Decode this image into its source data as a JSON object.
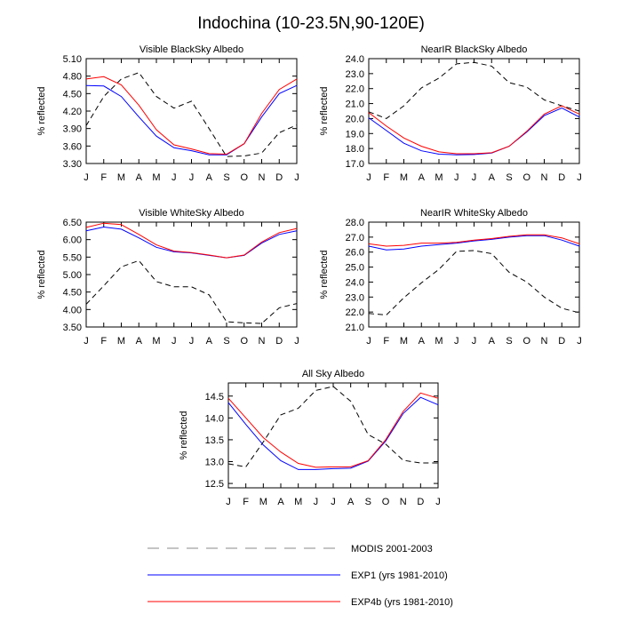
{
  "figure_title": "Indochina (10-23.5N,90-120E)",
  "colors": {
    "modis": "#000000",
    "exp1": "#0000ff",
    "exp4b": "#ff0000"
  },
  "legend": [
    {
      "label": "MODIS 2001-2003",
      "style": "dashed",
      "color": "#000000"
    },
    {
      "label": "EXP1 (yrs 1981-2010)",
      "style": "solid",
      "color": "#0000ff"
    },
    {
      "label": "EXP4b (yrs 1981-2010)",
      "style": "solid",
      "color": "#ff0000"
    }
  ],
  "chart_data": [
    {
      "type": "line",
      "title": "Visible BlackSky Albedo",
      "ylabel": "% reflected",
      "categories": [
        "J",
        "F",
        "M",
        "A",
        "M",
        "J",
        "J",
        "A",
        "S",
        "O",
        "N",
        "D",
        "J"
      ],
      "ylim": [
        3.3,
        5.1
      ],
      "yticks": [
        3.3,
        3.6,
        3.9,
        4.2,
        4.5,
        4.8,
        5.1
      ],
      "ytick_labels": [
        "3.30",
        "3.60",
        "3.90",
        "4.20",
        "4.50",
        "4.80",
        "5.10"
      ],
      "series": [
        {
          "name": "MODIS 2001-2003",
          "values": [
            3.95,
            4.45,
            4.75,
            4.86,
            4.45,
            4.25,
            4.37,
            3.9,
            3.42,
            3.43,
            3.48,
            3.83,
            3.96
          ]
        },
        {
          "name": "EXP1 (yrs 1981-2010)",
          "values": [
            4.64,
            4.63,
            4.45,
            4.1,
            3.77,
            3.57,
            3.52,
            3.45,
            3.45,
            3.64,
            4.1,
            4.5,
            4.64
          ]
        },
        {
          "name": "EXP4b (yrs 1981-2010)",
          "values": [
            4.75,
            4.79,
            4.65,
            4.3,
            3.88,
            3.62,
            3.55,
            3.47,
            3.46,
            3.64,
            4.16,
            4.57,
            4.75
          ]
        }
      ]
    },
    {
      "type": "line",
      "title": "NearIR BlackSky Albedo",
      "ylabel": "% reflected",
      "categories": [
        "J",
        "F",
        "M",
        "A",
        "M",
        "J",
        "J",
        "A",
        "S",
        "O",
        "N",
        "D",
        "J"
      ],
      "ylim": [
        17.0,
        24.0
      ],
      "yticks": [
        17.0,
        18.0,
        19.0,
        20.0,
        21.0,
        22.0,
        23.0,
        24.0
      ],
      "ytick_labels": [
        "17.0",
        "18.0",
        "19.0",
        "20.0",
        "21.0",
        "22.0",
        "23.0",
        "24.0"
      ],
      "series": [
        {
          "name": "MODIS 2001-2003",
          "values": [
            20.45,
            20.0,
            20.85,
            22.05,
            22.7,
            23.65,
            23.75,
            23.5,
            22.4,
            22.1,
            21.25,
            20.85,
            20.5
          ]
        },
        {
          "name": "EXP1 (yrs 1981-2010)",
          "values": [
            20.05,
            19.2,
            18.35,
            17.85,
            17.62,
            17.58,
            17.6,
            17.7,
            18.15,
            19.1,
            20.2,
            20.7,
            20.1
          ]
        },
        {
          "name": "EXP4b (yrs 1981-2010)",
          "values": [
            20.4,
            19.5,
            18.7,
            18.15,
            17.78,
            17.65,
            17.65,
            17.72,
            18.15,
            19.15,
            20.3,
            20.85,
            20.3
          ]
        }
      ]
    },
    {
      "type": "line",
      "title": "Visible WhiteSky Albedo",
      "ylabel": "% reflected",
      "categories": [
        "J",
        "F",
        "M",
        "A",
        "M",
        "J",
        "J",
        "A",
        "S",
        "O",
        "N",
        "D",
        "J"
      ],
      "ylim": [
        3.5,
        6.5
      ],
      "yticks": [
        3.5,
        4.0,
        4.5,
        5.0,
        5.5,
        6.0,
        6.5
      ],
      "ytick_labels": [
        "3.50",
        "4.00",
        "4.50",
        "5.00",
        "5.50",
        "6.00",
        "6.50"
      ],
      "series": [
        {
          "name": "MODIS 2001-2003",
          "values": [
            4.15,
            4.68,
            5.22,
            5.4,
            4.8,
            4.65,
            4.65,
            4.42,
            3.65,
            3.62,
            3.6,
            4.05,
            4.17
          ]
        },
        {
          "name": "EXP1 (yrs 1981-2010)",
          "values": [
            6.25,
            6.36,
            6.3,
            6.05,
            5.78,
            5.65,
            5.62,
            5.55,
            5.48,
            5.55,
            5.9,
            6.15,
            6.25
          ]
        },
        {
          "name": "EXP4b (yrs 1981-2010)",
          "values": [
            6.35,
            6.47,
            6.43,
            6.15,
            5.85,
            5.67,
            5.63,
            5.56,
            5.48,
            5.56,
            5.93,
            6.2,
            6.32
          ]
        }
      ]
    },
    {
      "type": "line",
      "title": "NearIR WhiteSky Albedo",
      "ylabel": "% reflected",
      "categories": [
        "J",
        "F",
        "M",
        "A",
        "M",
        "J",
        "J",
        "A",
        "S",
        "O",
        "N",
        "D",
        "J"
      ],
      "ylim": [
        21.0,
        28.0
      ],
      "yticks": [
        21.0,
        22.0,
        23.0,
        24.0,
        25.0,
        26.0,
        27.0,
        28.0
      ],
      "ytick_labels": [
        "21.0",
        "22.0",
        "23.0",
        "24.0",
        "25.0",
        "26.0",
        "27.0",
        "28.0"
      ],
      "series": [
        {
          "name": "MODIS 2001-2003",
          "values": [
            21.9,
            21.8,
            22.95,
            23.95,
            24.85,
            26.05,
            26.1,
            25.9,
            24.65,
            24.0,
            23.0,
            22.25,
            21.95
          ]
        },
        {
          "name": "EXP1 (yrs 1981-2010)",
          "values": [
            26.4,
            26.15,
            26.2,
            26.4,
            26.5,
            26.6,
            26.75,
            26.85,
            27.0,
            27.1,
            27.1,
            26.8,
            26.4
          ]
        },
        {
          "name": "EXP4b (yrs 1981-2010)",
          "values": [
            26.55,
            26.4,
            26.45,
            26.6,
            26.6,
            26.65,
            26.8,
            26.9,
            27.05,
            27.15,
            27.15,
            26.95,
            26.55
          ]
        }
      ]
    },
    {
      "type": "line",
      "title": "All Sky Albedo",
      "ylabel": "% reflected",
      "categories": [
        "J",
        "F",
        "M",
        "A",
        "M",
        "J",
        "J",
        "A",
        "S",
        "O",
        "N",
        "D",
        "J"
      ],
      "ylim": [
        12.4,
        14.8
      ],
      "yticks": [
        12.5,
        13.0,
        13.5,
        14.0,
        14.5
      ],
      "ytick_labels": [
        "12.5",
        "13.0",
        "13.5",
        "14.0",
        "14.5"
      ],
      "series": [
        {
          "name": "MODIS 2001-2003",
          "values": [
            12.95,
            12.88,
            13.45,
            14.07,
            14.22,
            14.63,
            14.72,
            14.38,
            13.62,
            13.4,
            13.03,
            12.97,
            12.97
          ]
        },
        {
          "name": "EXP1 (yrs 1981-2010)",
          "values": [
            14.35,
            13.85,
            13.38,
            13.02,
            12.82,
            12.82,
            12.84,
            12.85,
            13.01,
            13.47,
            14.1,
            14.47,
            14.3
          ]
        },
        {
          "name": "EXP4b (yrs 1981-2010)",
          "values": [
            14.45,
            14.0,
            13.55,
            13.22,
            12.96,
            12.87,
            12.88,
            12.88,
            13.02,
            13.5,
            14.15,
            14.57,
            14.45
          ]
        }
      ]
    }
  ]
}
